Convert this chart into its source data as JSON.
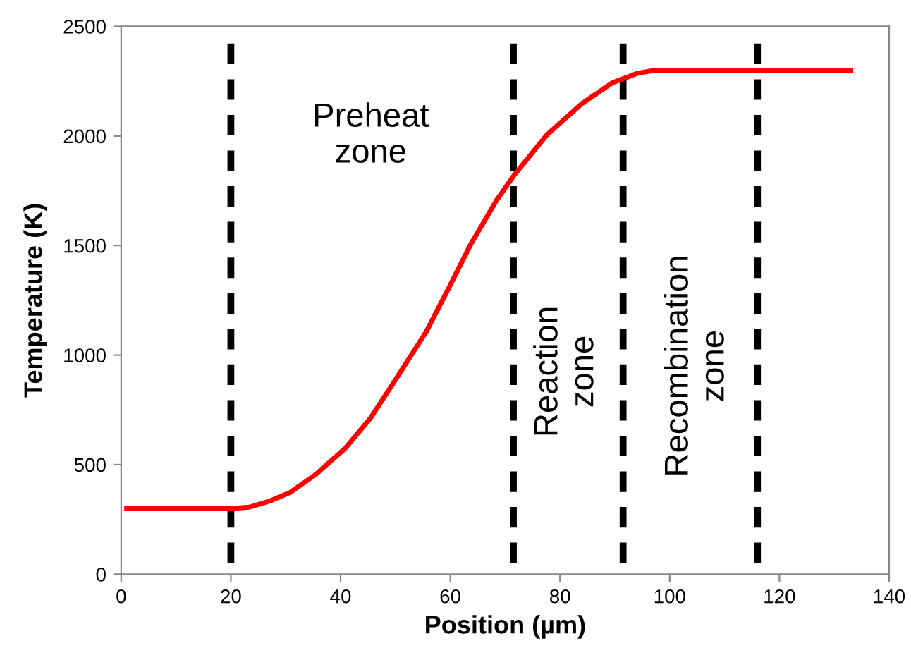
{
  "chart_data": {
    "type": "line",
    "xlabel": "Position (µm)",
    "ylabel": "Temperature (K)",
    "xlim": [
      0,
      140
    ],
    "xticks": [
      0,
      20,
      40,
      60,
      80,
      100,
      120,
      140
    ],
    "ylim": [
      0,
      2500
    ],
    "yticks": [
      0,
      500,
      1000,
      1500,
      2000,
      2500
    ],
    "grid": false,
    "marker": "none",
    "line_style": "solid",
    "series": [
      {
        "color": "#ff0000",
        "x": [
          1,
          20,
          23.4,
          27.1,
          30.8,
          35.4,
          40.9,
          45.5,
          50,
          55.6,
          60.1,
          63.8,
          68.4,
          71.6,
          77.6,
          84,
          89.5,
          94.1,
          97.3,
          133
        ],
        "values": [
          300,
          300,
          306,
          334,
          373,
          454,
          576,
          714,
          887,
          1106,
          1325,
          1509,
          1705,
          1820,
          2005,
          2148,
          2242,
          2286,
          2300,
          2300
        ]
      }
    ],
    "ref_lines": [
      {
        "axis": "x",
        "value": 20,
        "color": "#000000",
        "line_style": "dashed"
      },
      {
        "axis": "x",
        "value": 71.5,
        "color": "#000000",
        "line_style": "dashed"
      },
      {
        "axis": "x",
        "value": 91.5,
        "color": "#000000",
        "line_style": "dashed"
      },
      {
        "axis": "x",
        "value": 116,
        "color": "#000000",
        "line_style": "dashed"
      }
    ],
    "annotations": [
      "Preheat\nzone",
      "Reaction\nzone",
      "Recombination\nzone"
    ]
  }
}
